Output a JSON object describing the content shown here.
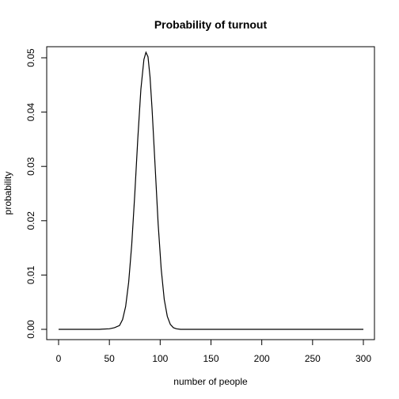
{
  "chart_data": {
    "type": "line",
    "title": "Probability of turnout",
    "xlabel": "number of people",
    "ylabel": "probability",
    "xlim": [
      0,
      300
    ],
    "ylim": [
      0,
      0.05
    ],
    "x_ticks": [
      "0",
      "50",
      "100",
      "150",
      "200",
      "250",
      "300"
    ],
    "y_ticks": [
      "0.00",
      "0.01",
      "0.02",
      "0.03",
      "0.04",
      "0.05"
    ],
    "grid": false,
    "legend": "none",
    "line_color": "#000000",
    "series": [
      {
        "x": [
          0,
          40,
          50,
          55,
          60,
          63,
          66,
          69,
          72,
          75,
          78,
          81,
          84,
          86,
          88,
          90,
          92,
          95,
          98,
          101,
          104,
          107,
          110,
          113,
          116,
          120,
          130,
          150,
          200,
          250,
          300
        ],
        "values": [
          0,
          0,
          0.0001,
          0.0003,
          0.0007,
          0.0018,
          0.0042,
          0.0087,
          0.0156,
          0.0249,
          0.0352,
          0.0442,
          0.0497,
          0.051,
          0.0502,
          0.0465,
          0.0406,
          0.0301,
          0.0194,
          0.0111,
          0.0055,
          0.0024,
          0.0009,
          0.0003,
          0.0001,
          0,
          0,
          0,
          0,
          0,
          0
        ]
      }
    ]
  }
}
